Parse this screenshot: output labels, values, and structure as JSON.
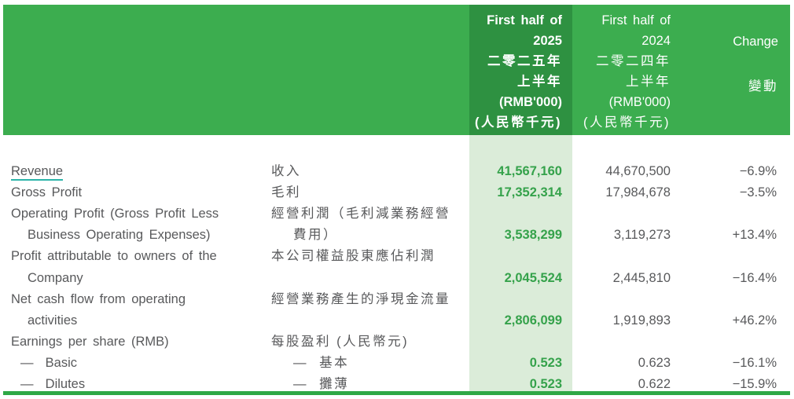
{
  "colors": {
    "header_green": "#3CAD4F",
    "header_dark_green": "#2E9141",
    "highlight_light_green": "#DBECD9",
    "value_green": "#35A24B",
    "text_gray": "#58595B",
    "revenue_underline_teal": "#2BB4A9",
    "bottom_rule_green": "#2FA846"
  },
  "header": {
    "col_2025": {
      "lines": [
        "First half of",
        "2025",
        "二零二五年",
        "上半年",
        "(RMB'000)",
        "(人民幣千元)"
      ]
    },
    "col_2024": {
      "lines": [
        "First half of",
        "2024",
        "二零二四年",
        "上半年",
        "(RMB'000)",
        "(人民幣千元)"
      ]
    },
    "col_change": {
      "label_en": "Change",
      "label_zh": "變動"
    }
  },
  "rows": [
    {
      "en": "Revenue",
      "zh": "收入",
      "v2025": "41,567,160",
      "v2024": "44,670,500",
      "change": "−6.9%"
    },
    {
      "en": "Gross Profit",
      "zh": "毛利",
      "v2025": "17,352,314",
      "v2024": "17,984,678",
      "change": "−3.5%"
    },
    {
      "en": "Operating Profit (Gross Profit Less",
      "zh": "經營利潤（毛利減業務經營",
      "v2025": "",
      "v2024": "",
      "change": ""
    },
    {
      "en": "Business Operating Expenses)",
      "zh": "費用）",
      "v2025": "3,538,299",
      "v2024": "3,119,273",
      "change": "+13.4%"
    },
    {
      "en": "Profit attributable to owners of the",
      "zh": "本公司權益股東應佔利潤",
      "v2025": "",
      "v2024": "",
      "change": ""
    },
    {
      "en": "Company",
      "zh": "",
      "v2025": "2,045,524",
      "v2024": "2,445,810",
      "change": "−16.4%"
    },
    {
      "en": "Net cash flow from operating",
      "zh": "經營業務產生的淨現金流量",
      "v2025": "",
      "v2024": "",
      "change": ""
    },
    {
      "en": "activities",
      "zh": "",
      "v2025": "2,806,099",
      "v2024": "1,919,893",
      "change": "+46.2%"
    },
    {
      "en": "Earnings per share (RMB)",
      "zh": "每股盈利 (人民幣元)",
      "v2025": "",
      "v2024": "",
      "change": ""
    },
    {
      "en": "—  Basic",
      "zh": "—  基本",
      "v2025": "0.523",
      "v2024": "0.623",
      "change": "−16.1%"
    },
    {
      "en": "—  Dilutes",
      "zh": "—  攤薄",
      "v2025": "0.523",
      "v2024": "0.622",
      "change": "−15.9%"
    }
  ]
}
